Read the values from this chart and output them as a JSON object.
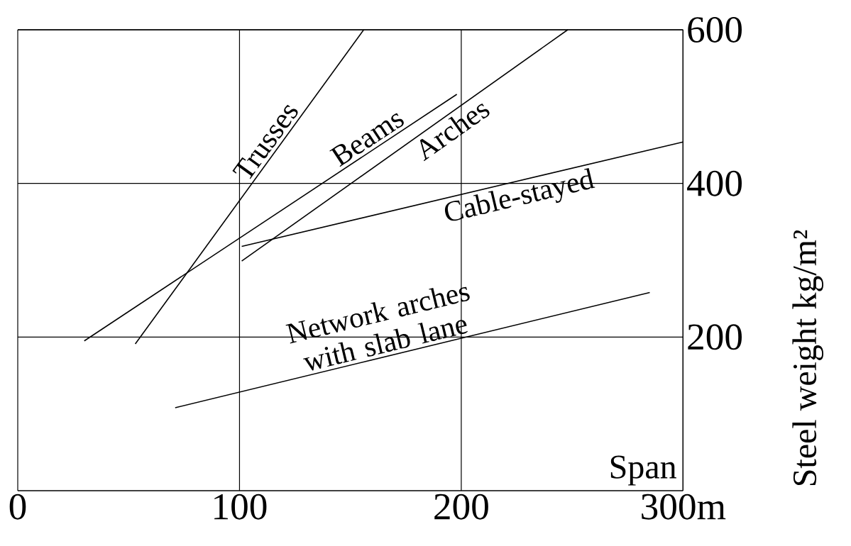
{
  "chart_data": {
    "type": "line",
    "xlabel": "Span",
    "ylabel": "Steel weight kg/m²",
    "xlim": [
      0,
      300
    ],
    "ylim": [
      0,
      600
    ],
    "xticks": [
      0,
      100,
      200,
      {
        "value": 300,
        "label": "300m"
      }
    ],
    "yticks": [
      200,
      400,
      600
    ],
    "grid": true,
    "marker": "none",
    "line_style": "solid",
    "series": [
      {
        "name": "Trusses",
        "color": "#000000",
        "x": [
          53,
          156
        ],
        "values": [
          191,
          600
        ]
      },
      {
        "name": "Beams",
        "color": "#000000",
        "x": [
          30,
          198
        ],
        "values": [
          195,
          516
        ]
      },
      {
        "name": "Arches",
        "color": "#000000",
        "x": [
          101,
          248
        ],
        "values": [
          299,
          600
        ]
      },
      {
        "name": "Cable-stayed",
        "color": "#000000",
        "x": [
          101,
          300
        ],
        "values": [
          318,
          454
        ]
      },
      {
        "name": "Network arches with slab lane",
        "color": "#000000",
        "x": [
          71,
          285
        ],
        "values": [
          108,
          258
        ]
      }
    ]
  }
}
